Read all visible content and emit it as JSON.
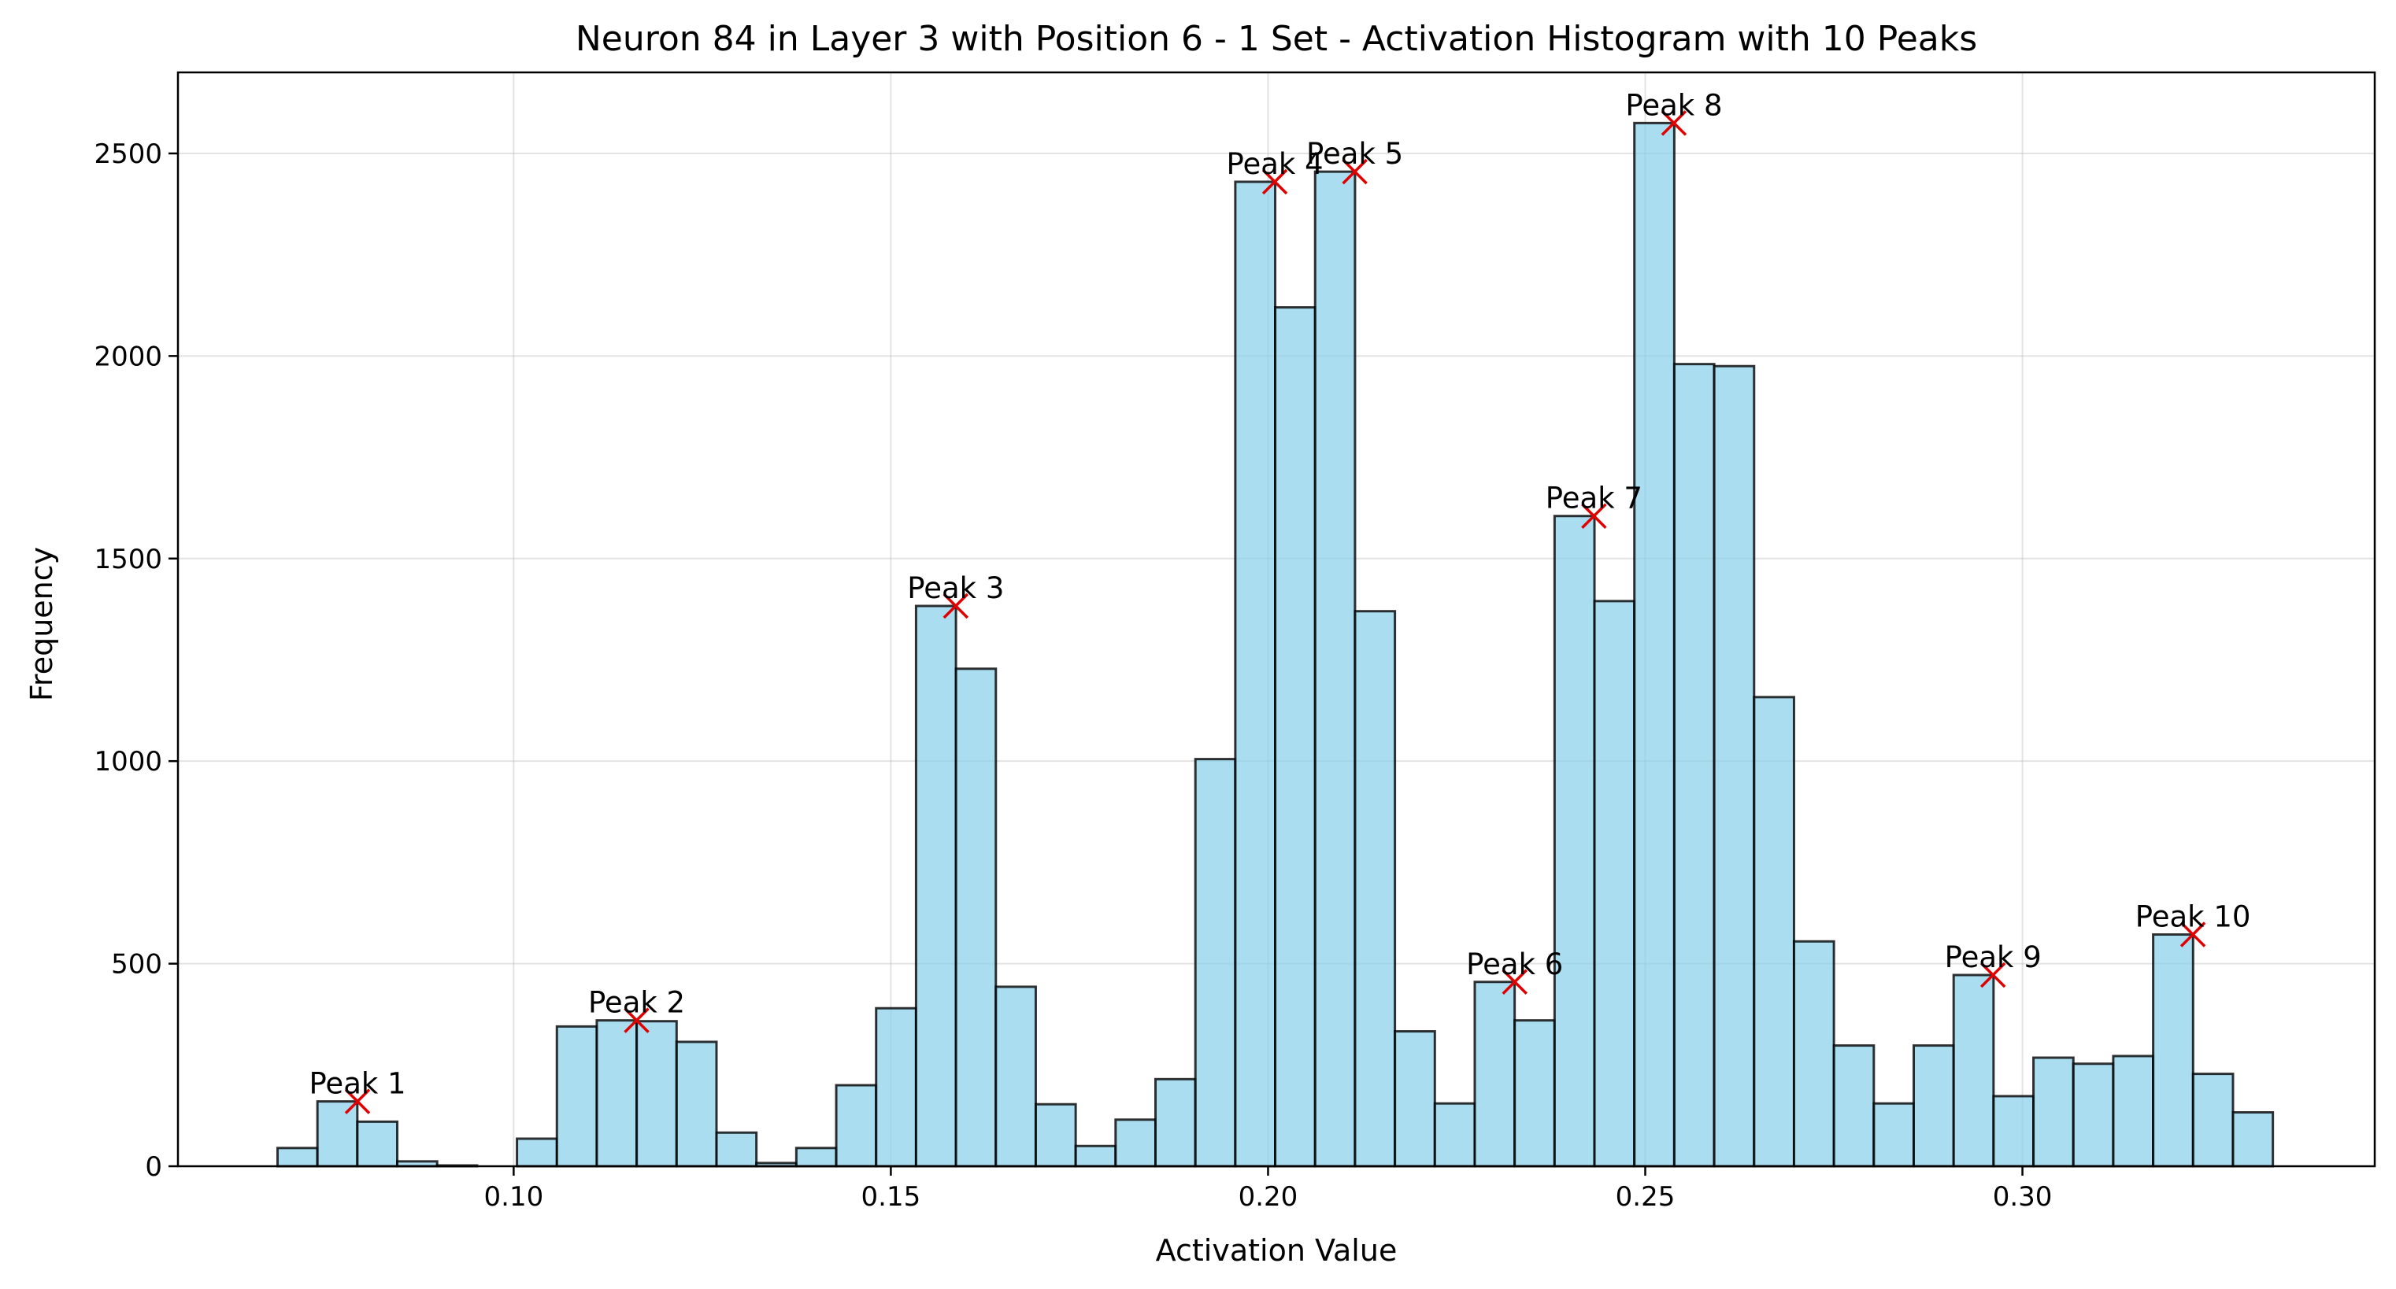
{
  "chart_data": {
    "type": "bar",
    "title": "Neuron 84 in Layer 3 with Position 6 - 1 Set - Activation Histogram with 10 Peaks",
    "xlabel": "Activation Value",
    "ylabel": "Frequency",
    "xlim": [
      0.0555,
      0.3467
    ],
    "ylim": [
      0,
      2700
    ],
    "grid": true,
    "x_ticks": [
      0.1,
      0.15,
      0.2,
      0.25,
      0.3
    ],
    "x_tick_labels": [
      "0.10",
      "0.15",
      "0.20",
      "0.25",
      "0.30"
    ],
    "y_ticks": [
      0,
      500,
      1000,
      1500,
      2000,
      2500
    ],
    "y_tick_labels": [
      "0",
      "500",
      "1000",
      "1500",
      "2000",
      "2500"
    ],
    "bin_start": 0.0687,
    "bin_width": 0.00529,
    "counts": [
      45,
      160,
      110,
      12,
      2,
      0,
      68,
      345,
      360,
      358,
      307,
      83,
      8,
      45,
      200,
      390,
      1383,
      1228,
      443,
      153,
      50,
      115,
      215,
      1005,
      2430,
      2120,
      2455,
      1370,
      333,
      155,
      455,
      360,
      1605,
      1395,
      2575,
      1980,
      1975,
      1158,
      555,
      298,
      155,
      298,
      472,
      173,
      268,
      253,
      272,
      572,
      228,
      133
    ],
    "bar_color": "#87ceeb",
    "marker_color": "#e00000",
    "peaks": [
      {
        "label": "Peak 1",
        "x": 0.0793,
        "y": 160
      },
      {
        "label": "Peak 2",
        "x": 0.1163,
        "y": 360
      },
      {
        "label": "Peak 3",
        "x": 0.1586,
        "y": 1383
      },
      {
        "label": "Peak 4",
        "x": 0.2009,
        "y": 2430
      },
      {
        "label": "Peak 5",
        "x": 0.2115,
        "y": 2455
      },
      {
        "label": "Peak 6",
        "x": 0.2327,
        "y": 455
      },
      {
        "label": "Peak 7",
        "x": 0.2432,
        "y": 1605
      },
      {
        "label": "Peak 8",
        "x": 0.2538,
        "y": 2575
      },
      {
        "label": "Peak 9",
        "x": 0.2961,
        "y": 472
      },
      {
        "label": "Peak 10",
        "x": 0.3226,
        "y": 572
      }
    ]
  }
}
